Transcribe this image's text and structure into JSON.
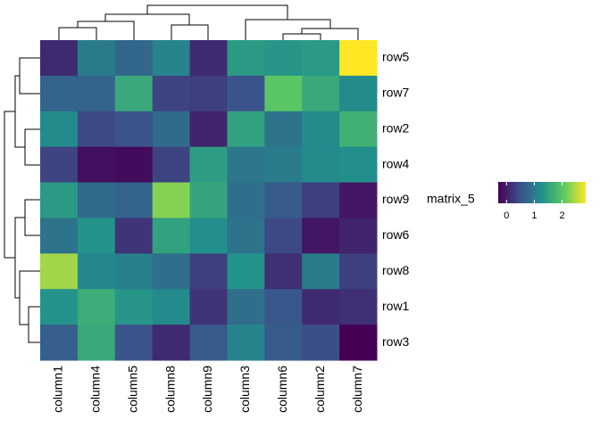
{
  "chart_data": {
    "type": "heatmap",
    "legend_title": "matrix_5",
    "rows": [
      "row5",
      "row7",
      "row2",
      "row4",
      "row9",
      "row6",
      "row8",
      "row1",
      "row3"
    ],
    "columns": [
      "column1",
      "column4",
      "column5",
      "column8",
      "column9",
      "column3",
      "column6",
      "column2",
      "column7"
    ],
    "values": [
      [
        0.1,
        1.0,
        0.75,
        1.1,
        0.1,
        1.4,
        1.35,
        1.4,
        2.85
      ],
      [
        0.7,
        0.7,
        1.6,
        0.35,
        0.3,
        0.5,
        2.0,
        1.6,
        1.2
      ],
      [
        1.2,
        0.4,
        0.5,
        0.8,
        0.05,
        1.5,
        0.9,
        1.2,
        1.7
      ],
      [
        0.35,
        -0.15,
        -0.2,
        0.35,
        1.45,
        0.95,
        1.0,
        1.2,
        1.25
      ],
      [
        1.4,
        0.8,
        0.7,
        2.25,
        1.55,
        0.85,
        0.6,
        0.3,
        -0.1
      ],
      [
        0.9,
        1.3,
        0.2,
        1.5,
        1.25,
        0.9,
        0.4,
        -0.1,
        0.05
      ],
      [
        2.4,
        1.15,
        1.05,
        0.85,
        0.3,
        1.3,
        0.15,
        1.0,
        0.3
      ],
      [
        1.3,
        1.65,
        1.35,
        1.2,
        0.2,
        0.85,
        0.55,
        0.1,
        0.15
      ],
      [
        0.65,
        1.6,
        0.5,
        0.1,
        0.6,
        1.1,
        0.6,
        0.45,
        -0.3
      ]
    ],
    "zlim": [
      -0.3,
      2.85
    ],
    "zticks": [
      0,
      1,
      2
    ],
    "colorscale": [
      "#440154",
      "#3b528b",
      "#21918c",
      "#5ec962",
      "#fde725"
    ]
  }
}
